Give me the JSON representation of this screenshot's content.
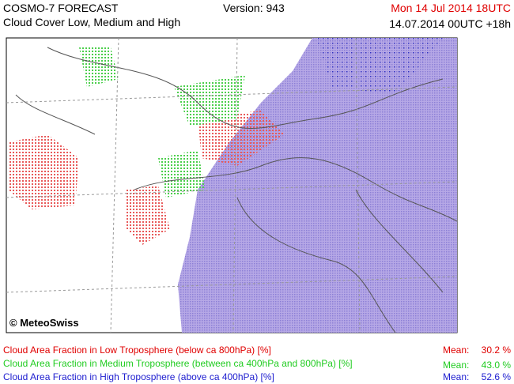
{
  "header": {
    "title": "COSMO-7 FORECAST",
    "subtitle": "Cloud Cover Low, Medium and High",
    "version": "Version: 943",
    "valid_time": "Mon 14 Jul 2014 18UTC",
    "run_time": "14.07.2014 00UTC +18h"
  },
  "map": {
    "credit": "© MeteoSwiss"
  },
  "legend": [
    {
      "label": "Cloud Area Fraction in Low Troposphere (below ca 800hPa) [%]",
      "mean_label": "Mean:",
      "mean": "30.2 %"
    },
    {
      "label": "Cloud Area Fraction in Medium Troposphere (between ca 400hPa and 800hPa) [%]",
      "mean_label": "Mean:",
      "mean": "43.0 %"
    },
    {
      "label": "Cloud Area Fraction in High Troposphere (above ca 400hPa) [%]",
      "mean_label": "Mean:",
      "mean": "52.6 %"
    }
  ]
}
